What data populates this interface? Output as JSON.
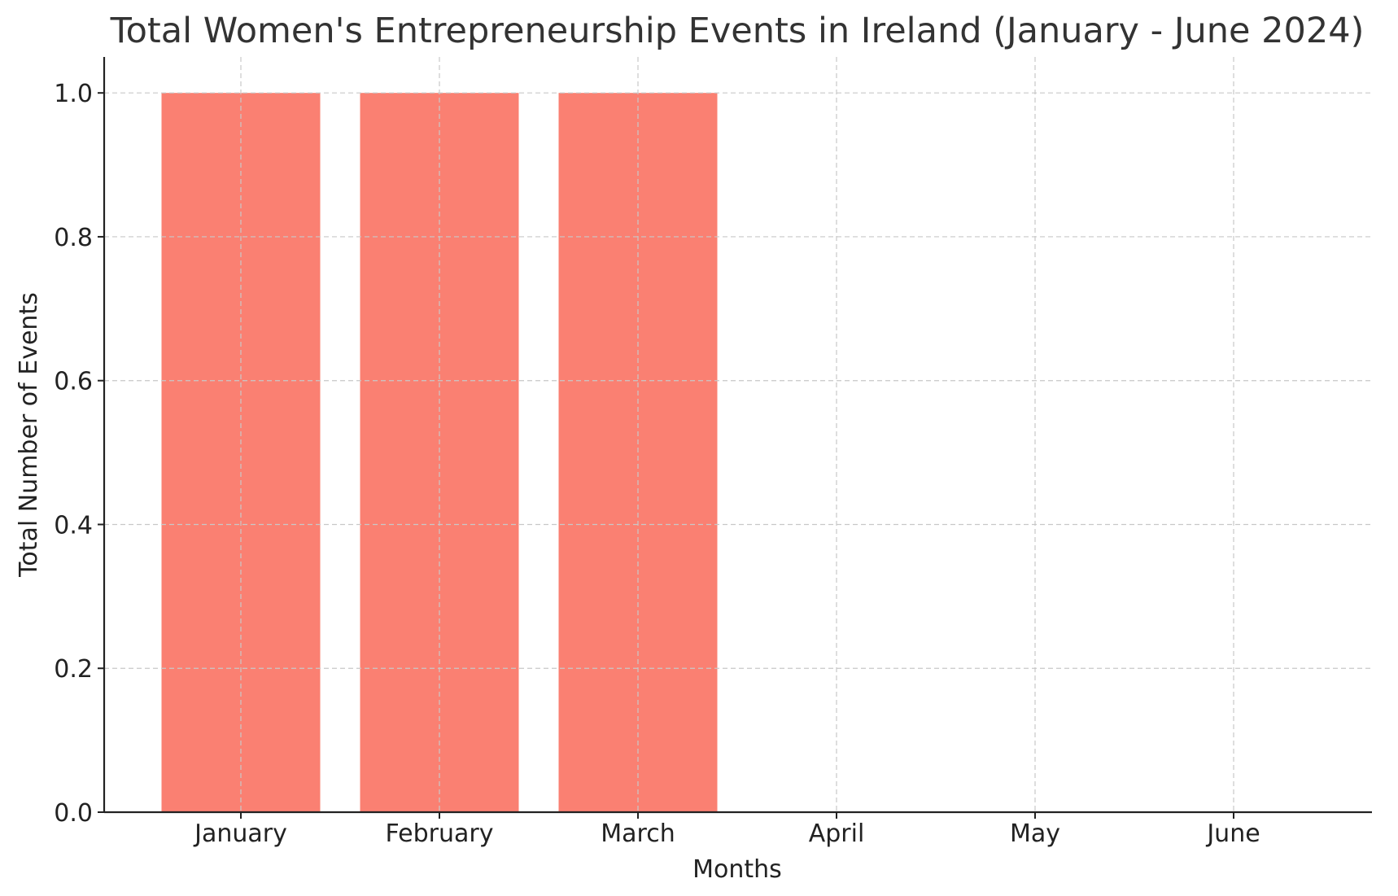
{
  "chart_data": {
    "type": "bar",
    "title": "Total Women's Entrepreneurship Events in Ireland (January - June 2024)",
    "xlabel": "Months",
    "ylabel": "Total Number of Events",
    "categories": [
      "January",
      "February",
      "March",
      "April",
      "May",
      "June"
    ],
    "values": [
      1,
      1,
      1,
      0,
      0,
      0
    ],
    "ylim": [
      0,
      1.05
    ],
    "yticks": [
      0.0,
      0.2,
      0.4,
      0.6,
      0.8,
      1.0
    ],
    "ytick_labels": [
      "0.0",
      "0.2",
      "0.4",
      "0.6",
      "0.8",
      "1.0"
    ],
    "grid": true,
    "bar_color": "#fa8072"
  }
}
